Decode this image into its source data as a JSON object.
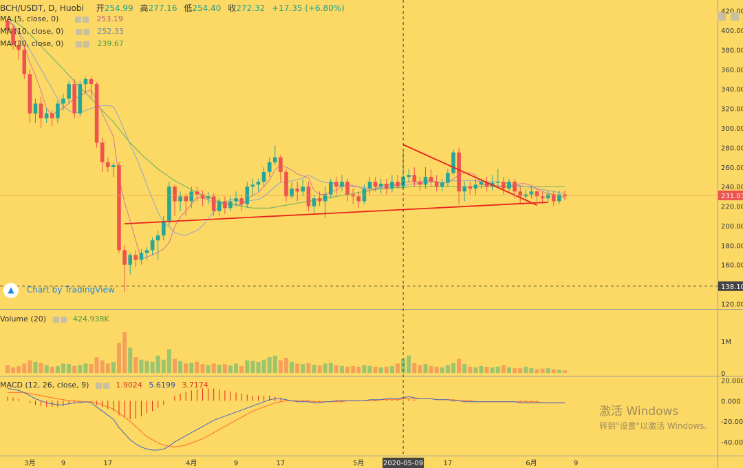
{
  "colors": {
    "background": "#fcd865",
    "up": "#26a69a",
    "down": "#ef5350",
    "vol_up": "#9bc46f",
    "vol_down": "#f5a05a",
    "trend": "#e8231b",
    "ma5": "#d07a9e",
    "ma10": "#8fa8c8",
    "ma30": "#79b86b",
    "macd_line": "#4169c8",
    "signal_line": "#ff6b2b",
    "hist": "#e8231b"
  },
  "header": {
    "symbol": "BCH/USDT, D, Huobi",
    "open_label": "开",
    "open": "254.99",
    "high_label": "高",
    "high": "277.16",
    "low_label": "低",
    "low": "254.40",
    "close_label": "收",
    "close": "272.32",
    "change": "+17.35 (+6.80%)"
  },
  "indicators": {
    "ma5": {
      "label": "MA (5, close, 0)",
      "value": "253.19"
    },
    "ma10": {
      "label": "MA (10, close, 0)",
      "value": "252.33"
    },
    "ma30": {
      "label": "MA (30, close, 0)",
      "value": "239.67"
    },
    "volume": {
      "label": "Volume (20)",
      "value": "424.938K"
    },
    "macd": {
      "label": "MACD (12, 26, close, 9)",
      "hist": "1.9024",
      "macd": "5.6199",
      "signal": "3.7174"
    }
  },
  "watermark": "Chart by TradingView",
  "os_watermark": {
    "line1": "激活 Windows",
    "line2": "转到\"设置\"以激活 Windows。"
  },
  "chart_data": {
    "type": "candlestick",
    "x_ticks": [
      {
        "label": "3月",
        "day": 4
      },
      {
        "label": "9",
        "day": 10
      },
      {
        "label": "17",
        "day": 18
      },
      {
        "label": "4月",
        "day": 33
      },
      {
        "label": "9",
        "day": 41
      },
      {
        "label": "17",
        "day": 49
      },
      {
        "label": "5月",
        "day": 63
      },
      {
        "label": "17",
        "day": 79
      },
      {
        "label": "6月",
        "day": 94
      },
      {
        "label": "9",
        "day": 102
      }
    ],
    "crosshair": {
      "day": 71,
      "date": "2020-05-09",
      "price": "138.10"
    },
    "current_price": "231.03",
    "price_axis": {
      "ticks": [
        "420.00",
        "400.00",
        "380.00",
        "360.00",
        "340.00",
        "320.00",
        "300.00",
        "280.00",
        "260.00",
        "240.00",
        "220.00",
        "200.00",
        "180.00",
        "160.00",
        "140.00",
        "120.00"
      ],
      "range": [
        114,
        424
      ]
    },
    "volume_axis": {
      "ticks": [
        "1M",
        "0"
      ]
    },
    "macd_axis": {
      "ticks": [
        "20.000",
        "0.000",
        "-20.000",
        "-40.000"
      ],
      "range": [
        -52,
        25
      ]
    },
    "candles": [
      [
        410,
        400,
        412,
        395
      ],
      [
        402,
        385,
        405,
        380
      ],
      [
        385,
        380,
        390,
        370
      ],
      [
        380,
        355,
        384,
        350
      ],
      [
        355,
        315,
        360,
        305
      ],
      [
        315,
        325,
        330,
        305
      ],
      [
        325,
        310,
        332,
        300
      ],
      [
        310,
        315,
        320,
        305
      ],
      [
        315,
        310,
        318,
        302
      ],
      [
        310,
        325,
        328,
        305
      ],
      [
        325,
        330,
        335,
        318
      ],
      [
        330,
        345,
        348,
        325
      ],
      [
        345,
        315,
        350,
        310
      ],
      [
        315,
        345,
        348,
        312
      ],
      [
        345,
        350,
        352,
        335
      ],
      [
        350,
        345,
        353,
        330
      ],
      [
        345,
        285,
        347,
        280
      ],
      [
        285,
        265,
        290,
        255
      ],
      [
        265,
        260,
        270,
        255
      ],
      [
        260,
        262,
        265,
        250
      ],
      [
        262,
        175,
        265,
        172
      ],
      [
        175,
        160,
        180,
        132
      ],
      [
        160,
        170,
        172,
        150
      ],
      [
        170,
        165,
        175,
        158
      ],
      [
        165,
        172,
        176,
        160
      ],
      [
        172,
        175,
        178,
        165
      ],
      [
        175,
        185,
        188,
        170
      ],
      [
        185,
        190,
        195,
        165
      ],
      [
        190,
        205,
        210,
        185
      ],
      [
        205,
        240,
        245,
        200
      ],
      [
        240,
        225,
        242,
        210
      ],
      [
        225,
        230,
        235,
        215
      ],
      [
        230,
        225,
        233,
        210
      ],
      [
        225,
        235,
        240,
        218
      ],
      [
        235,
        232,
        240,
        225
      ],
      [
        232,
        228,
        236,
        220
      ],
      [
        228,
        230,
        235,
        222
      ],
      [
        230,
        215,
        233,
        210
      ],
      [
        215,
        225,
        228,
        210
      ],
      [
        225,
        218,
        230,
        212
      ],
      [
        218,
        225,
        230,
        215
      ],
      [
        225,
        228,
        235,
        220
      ],
      [
        228,
        222,
        232,
        215
      ],
      [
        222,
        240,
        245,
        218
      ],
      [
        240,
        242,
        248,
        230
      ],
      [
        242,
        245,
        248,
        235
      ],
      [
        245,
        255,
        260,
        240
      ],
      [
        255,
        265,
        270,
        250
      ],
      [
        265,
        270,
        282,
        262
      ],
      [
        270,
        255,
        272,
        245
      ],
      [
        255,
        230,
        258,
        225
      ],
      [
        230,
        238,
        245,
        228
      ],
      [
        238,
        235,
        245,
        225
      ],
      [
        235,
        240,
        248,
        230
      ],
      [
        240,
        220,
        245,
        215
      ],
      [
        220,
        228,
        232,
        212
      ],
      [
        228,
        225,
        235,
        220
      ],
      [
        225,
        232,
        240,
        208
      ],
      [
        232,
        245,
        248,
        228
      ],
      [
        245,
        240,
        250,
        232
      ],
      [
        240,
        245,
        252,
        235
      ],
      [
        245,
        232,
        248,
        225
      ],
      [
        232,
        230,
        238,
        222
      ],
      [
        230,
        225,
        235,
        218
      ],
      [
        225,
        238,
        242,
        222
      ],
      [
        238,
        245,
        250,
        232
      ],
      [
        245,
        240,
        250,
        235
      ],
      [
        240,
        243,
        248,
        233
      ],
      [
        243,
        238,
        248,
        232
      ],
      [
        238,
        245,
        252,
        234
      ],
      [
        245,
        240,
        252,
        238
      ],
      [
        240,
        250,
        276,
        238
      ],
      [
        250,
        252,
        258,
        244
      ],
      [
        252,
        245,
        260,
        240
      ],
      [
        245,
        242,
        250,
        236
      ],
      [
        242,
        250,
        260,
        238
      ],
      [
        250,
        245,
        258,
        240
      ],
      [
        245,
        240,
        252,
        235
      ],
      [
        240,
        244,
        248,
        235
      ],
      [
        244,
        254,
        258,
        240
      ],
      [
        254,
        275,
        278,
        252
      ],
      [
        275,
        235,
        280,
        222
      ],
      [
        235,
        240,
        245,
        225
      ],
      [
        240,
        238,
        245,
        232
      ],
      [
        238,
        242,
        248,
        232
      ],
      [
        242,
        245,
        248,
        238
      ],
      [
        245,
        240,
        250,
        235
      ],
      [
        240,
        244,
        252,
        236
      ],
      [
        244,
        245,
        258,
        240
      ],
      [
        245,
        238,
        250,
        232
      ],
      [
        238,
        245,
        248,
        235
      ],
      [
        245,
        235,
        248,
        228
      ],
      [
        235,
        230,
        240,
        222
      ],
      [
        230,
        232,
        238,
        225
      ],
      [
        232,
        235,
        240,
        228
      ],
      [
        235,
        230,
        238,
        225
      ],
      [
        230,
        228,
        235,
        222
      ],
      [
        228,
        232,
        236,
        225
      ],
      [
        232,
        225,
        235,
        220
      ],
      [
        225,
        232,
        236,
        222
      ],
      [
        232,
        230,
        236,
        226
      ]
    ],
    "ma5": [
      410,
      405,
      396,
      385,
      367,
      354,
      338,
      320,
      314,
      317,
      321,
      325,
      331,
      332,
      337,
      339,
      328,
      315,
      303,
      291,
      249,
      224,
      205,
      185,
      166,
      168,
      170,
      173,
      176,
      183,
      199,
      209,
      215,
      222,
      229,
      228,
      227,
      223,
      224,
      222,
      221,
      222,
      221,
      227,
      231,
      234,
      240,
      247,
      257,
      262,
      260,
      257,
      253,
      251,
      249,
      236,
      232,
      232,
      235,
      236,
      241,
      242,
      241,
      240,
      236,
      236,
      238,
      241,
      242,
      242,
      242,
      244,
      245,
      245,
      245,
      246,
      246,
      245,
      243,
      245,
      248,
      252,
      254,
      254,
      252,
      242,
      242,
      241,
      241,
      240,
      241,
      241,
      243,
      243,
      241,
      238,
      235,
      233,
      232,
      230,
      229
    ],
    "ma10": [
      410,
      406,
      398,
      390,
      380,
      370,
      360,
      350,
      340,
      330,
      322,
      318,
      316,
      316,
      318,
      320,
      322,
      323,
      323,
      322,
      311,
      297,
      283,
      271,
      257,
      242,
      227,
      214,
      203,
      199,
      193,
      191,
      190,
      193,
      195,
      200,
      207,
      214,
      220,
      224,
      227,
      226,
      225,
      225,
      226,
      227,
      230,
      235,
      240,
      244,
      245,
      246,
      247,
      249,
      252,
      249,
      246,
      244,
      244,
      243,
      240,
      240,
      240,
      240,
      239,
      238,
      238,
      239,
      240,
      241,
      241,
      242,
      242,
      243,
      243,
      244,
      245,
      245,
      244,
      245,
      246,
      246,
      246,
      246,
      246,
      245,
      245,
      245,
      245,
      244,
      243,
      242,
      241,
      240,
      239,
      238,
      237,
      236,
      235,
      234,
      233
    ],
    "ma30": [
      412,
      410,
      406,
      402,
      396,
      390,
      384,
      378,
      372,
      366,
      360,
      354,
      348,
      342,
      336,
      330,
      324,
      318,
      312,
      306,
      299,
      292,
      285,
      279,
      273,
      268,
      263,
      258,
      254,
      250,
      246,
      243,
      240,
      237,
      234,
      231,
      229,
      227,
      225,
      223,
      222,
      221,
      220,
      219,
      218,
      218,
      218,
      218,
      219,
      220,
      221,
      222,
      223,
      224,
      225,
      226,
      227,
      228,
      229,
      230,
      231,
      232,
      233,
      234,
      235,
      236,
      237,
      238,
      238,
      239,
      239,
      239,
      240,
      240,
      240,
      240,
      240,
      240,
      240,
      240,
      240,
      240,
      240,
      240,
      240,
      240,
      240,
      240,
      240,
      240,
      240,
      240,
      240,
      240,
      240,
      240,
      240,
      240,
      240,
      240,
      240
    ],
    "volume": [
      0.25,
      0.18,
      0.22,
      0.3,
      0.4,
      0.35,
      0.32,
      0.25,
      0.2,
      0.22,
      0.3,
      0.28,
      0.22,
      0.25,
      0.3,
      0.28,
      0.5,
      0.4,
      0.3,
      0.35,
      0.95,
      1.3,
      0.8,
      0.5,
      0.42,
      0.38,
      0.35,
      0.55,
      0.42,
      0.75,
      0.45,
      0.38,
      0.3,
      0.32,
      0.35,
      0.28,
      0.25,
      0.3,
      0.26,
      0.28,
      0.24,
      0.3,
      0.22,
      0.4,
      0.38,
      0.35,
      0.42,
      0.5,
      0.55,
      0.4,
      0.48,
      0.35,
      0.3,
      0.28,
      0.32,
      0.26,
      0.24,
      0.3,
      0.32,
      0.25,
      0.22,
      0.2,
      0.22,
      0.2,
      0.25,
      0.22,
      0.2,
      0.18,
      0.2,
      0.22,
      0.3,
      0.45,
      0.55,
      0.32,
      0.25,
      0.28,
      0.22,
      0.2,
      0.18,
      0.25,
      0.32,
      0.45,
      0.28,
      0.2,
      0.18,
      0.22,
      0.2,
      0.18,
      0.2,
      0.25,
      0.18,
      0.16,
      0.15,
      0.2,
      0.15,
      0.12,
      0.14,
      0.15,
      0.12,
      0.1,
      0.08
    ],
    "macd": [
      12,
      11,
      10,
      8,
      5,
      2,
      0,
      -2,
      -3,
      -4,
      -4,
      -3,
      -2,
      -2,
      -1,
      -2,
      -6,
      -10,
      -14,
      -18,
      -26,
      -32,
      -38,
      -42,
      -45,
      -47,
      -48,
      -48,
      -47,
      -44,
      -40,
      -37,
      -34,
      -31,
      -28,
      -25,
      -22,
      -19,
      -17,
      -15,
      -13,
      -11,
      -9,
      -7,
      -5,
      -3,
      -1,
      1,
      2,
      2,
      1,
      0,
      -1,
      -1,
      -1,
      -2,
      -2,
      -1,
      -1,
      0,
      0,
      0,
      0,
      0,
      0,
      1,
      1,
      1,
      2,
      2,
      2,
      3,
      4,
      3,
      2,
      2,
      2,
      1,
      1,
      1,
      0,
      0,
      -1,
      -1,
      -1,
      -1,
      -1,
      -1,
      -1,
      -1,
      -1,
      -1,
      -2,
      -2,
      -2,
      -2,
      -2,
      -2,
      -2,
      -2,
      -2
    ],
    "signal": [
      8,
      8,
      8,
      8,
      7,
      6,
      5,
      4,
      3,
      2,
      1,
      0,
      0,
      -1,
      -1,
      -1,
      -2,
      -4,
      -6,
      -8,
      -12,
      -16,
      -20,
      -25,
      -30,
      -35,
      -38,
      -41,
      -43,
      -44,
      -45,
      -44,
      -43,
      -41,
      -39,
      -37,
      -34,
      -31,
      -28,
      -25,
      -22,
      -19,
      -16,
      -13,
      -10,
      -8,
      -6,
      -4,
      -2,
      -1,
      0,
      0,
      0,
      0,
      0,
      -1,
      -1,
      -1,
      -1,
      -1,
      -1,
      0,
      0,
      0,
      0,
      0,
      0,
      1,
      1,
      1,
      1,
      2,
      2,
      2,
      2,
      2,
      2,
      1,
      1,
      1,
      1,
      0,
      0,
      0,
      -1,
      -1,
      -1,
      -1,
      -1,
      -1,
      -1,
      -1,
      -1,
      -1,
      -1,
      -1,
      -2,
      -2,
      -2,
      -2,
      -2
    ],
    "trendlines": [
      {
        "from": {
          "day": 21,
          "price": 202
        },
        "to": {
          "day": 97,
          "price": 224
        }
      },
      {
        "from": {
          "day": 71,
          "price": 283
        },
        "to": {
          "day": 95,
          "price": 221
        }
      }
    ]
  }
}
